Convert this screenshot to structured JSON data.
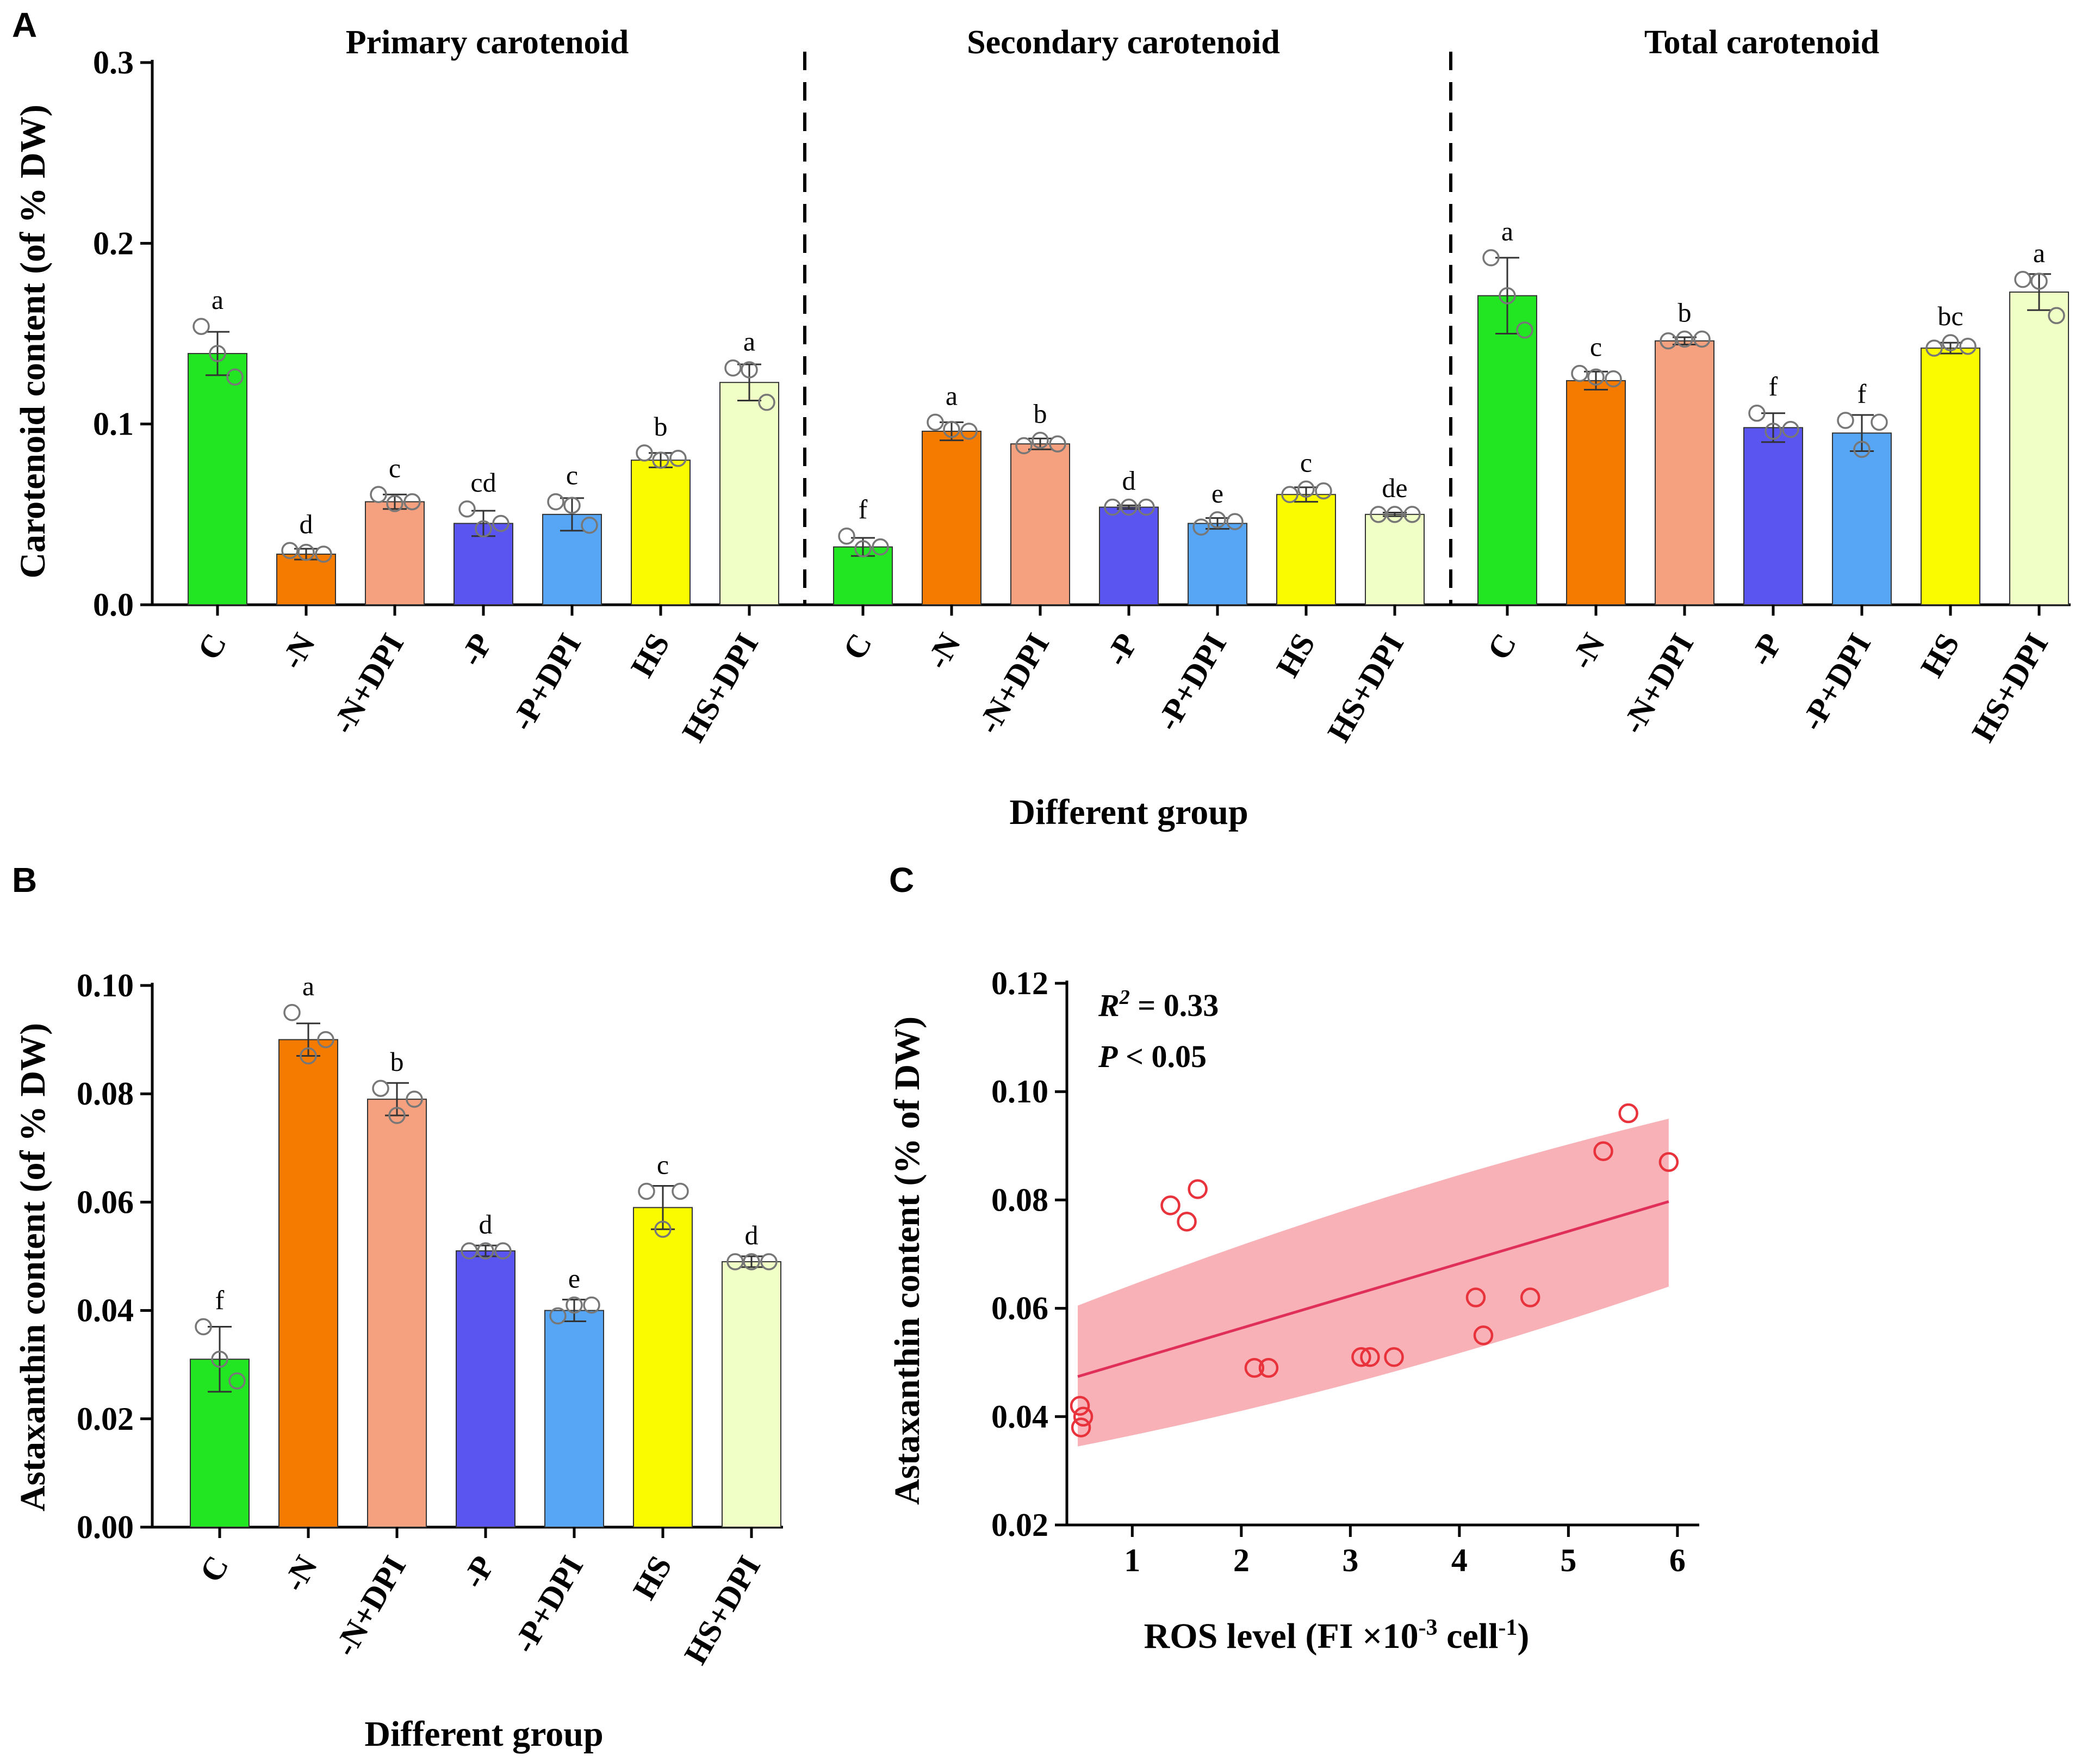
{
  "panel_letters": {
    "a": "A",
    "b": "B",
    "c": "C"
  },
  "chart_data": [
    {
      "id": "A",
      "type": "bar",
      "ylabel": "Carotenoid content (of % DW)",
      "xlabel": "Different group",
      "ylim": [
        0,
        0.3
      ],
      "yticks": [
        "0.0",
        "0.1",
        "0.2",
        "0.3"
      ],
      "categories": [
        "C",
        "-N",
        "-N+DPI",
        "-P",
        "-P+DPI",
        "HS",
        "HS+DPI"
      ],
      "colors": [
        "#22e622",
        "#f57b00",
        "#f5a07e",
        "#5a54f0",
        "#56a6f5",
        "#fbfb00",
        "#efffc6"
      ],
      "sections": [
        {
          "title": "Primary carotenoid",
          "values": [
            0.139,
            0.028,
            0.057,
            0.045,
            0.05,
            0.08,
            0.123
          ],
          "errors": [
            0.012,
            0.003,
            0.004,
            0.007,
            0.009,
            0.004,
            0.01
          ],
          "letters": [
            "a",
            "d",
            "c",
            "cd",
            "c",
            "b",
            "a"
          ],
          "points": [
            [
              0.154,
              0.139,
              0.126
            ],
            [
              0.03,
              0.029,
              0.028
            ],
            [
              0.061,
              0.056,
              0.057
            ],
            [
              0.053,
              0.042,
              0.045
            ],
            [
              0.057,
              0.055,
              0.044
            ],
            [
              0.084,
              0.08,
              0.081
            ],
            [
              0.131,
              0.13,
              0.112
            ]
          ]
        },
        {
          "title": "Secondary carotenoid",
          "values": [
            0.032,
            0.096,
            0.089,
            0.054,
            0.045,
            0.061,
            0.05
          ],
          "errors": [
            0.005,
            0.005,
            0.003,
            0.001,
            0.003,
            0.004,
            0.001
          ],
          "letters": [
            "f",
            "a",
            "b",
            "d",
            "e",
            "c",
            "de"
          ],
          "points": [
            [
              0.038,
              0.031,
              0.032
            ],
            [
              0.101,
              0.097,
              0.096
            ],
            [
              0.088,
              0.091,
              0.089
            ],
            [
              0.054,
              0.054,
              0.054
            ],
            [
              0.043,
              0.047,
              0.046
            ],
            [
              0.061,
              0.064,
              0.063
            ],
            [
              0.05,
              0.05,
              0.05
            ]
          ]
        },
        {
          "title": "Total carotenoid",
          "values": [
            0.171,
            0.124,
            0.146,
            0.098,
            0.095,
            0.142,
            0.173
          ],
          "errors": [
            0.021,
            0.005,
            0.002,
            0.008,
            0.01,
            0.003,
            0.01
          ],
          "letters": [
            "a",
            "c",
            "b",
            "f",
            "f",
            "bc",
            "a"
          ],
          "points": [
            [
              0.192,
              0.171,
              0.152
            ],
            [
              0.128,
              0.126,
              0.125
            ],
            [
              0.146,
              0.147,
              0.147
            ],
            [
              0.106,
              0.096,
              0.097
            ],
            [
              0.102,
              0.086,
              0.101
            ],
            [
              0.142,
              0.145,
              0.143
            ],
            [
              0.18,
              0.179,
              0.16
            ]
          ]
        }
      ]
    },
    {
      "id": "B",
      "type": "bar",
      "ylabel": "Astaxanthin content (of % DW)",
      "xlabel": "Different group",
      "ylim": [
        0,
        0.1
      ],
      "yticks": [
        "0.00",
        "0.02",
        "0.04",
        "0.06",
        "0.08",
        "0.10"
      ],
      "categories": [
        "C",
        "-N",
        "-N+DPI",
        "-P",
        "-P+DPI",
        "HS",
        "HS+DPI"
      ],
      "colors": [
        "#22e622",
        "#f57b00",
        "#f5a07e",
        "#5a54f0",
        "#56a6f5",
        "#fbfb00",
        "#efffc6"
      ],
      "values": [
        0.031,
        0.09,
        0.079,
        0.051,
        0.04,
        0.059,
        0.049
      ],
      "errors": [
        0.006,
        0.003,
        0.003,
        0.001,
        0.002,
        0.004,
        0.001
      ],
      "letters": [
        "f",
        "a",
        "b",
        "d",
        "e",
        "c",
        "d"
      ],
      "points": [
        [
          0.037,
          0.031,
          0.027
        ],
        [
          0.095,
          0.087,
          0.09
        ],
        [
          0.081,
          0.076,
          0.079
        ],
        [
          0.051,
          0.051,
          0.051
        ],
        [
          0.039,
          0.041,
          0.041
        ],
        [
          0.062,
          0.055,
          0.062
        ],
        [
          0.049,
          0.049,
          0.049
        ]
      ]
    },
    {
      "id": "C",
      "type": "scatter",
      "xlabel_main": "ROS level (FI ×10",
      "xlabel_sup1": "-3",
      "xlabel_mid": " cell",
      "xlabel_sup2": "-1",
      "xlabel_end": ")",
      "ylabel": "Astaxanthin content (% of DW)",
      "xlim": [
        0.4,
        6.2
      ],
      "ylim": [
        0.02,
        0.12
      ],
      "xticks": [
        "1",
        "2",
        "3",
        "4",
        "5",
        "6"
      ],
      "yticks": [
        "0.02",
        "0.04",
        "0.06",
        "0.08",
        "0.10",
        "0.12"
      ],
      "r2_symbol": "R",
      "r2_sup": "2",
      "r2_text": " = 0.33",
      "p_symbol": "P",
      "p_text": " < 0.05",
      "points": [
        [
          0.52,
          0.042
        ],
        [
          0.55,
          0.04
        ],
        [
          0.53,
          0.038
        ],
        [
          1.35,
          0.079
        ],
        [
          1.5,
          0.076
        ],
        [
          1.6,
          0.082
        ],
        [
          2.12,
          0.049
        ],
        [
          2.25,
          0.049
        ],
        [
          3.1,
          0.051
        ],
        [
          3.18,
          0.051
        ],
        [
          3.4,
          0.051
        ],
        [
          4.15,
          0.062
        ],
        [
          4.22,
          0.055
        ],
        [
          4.65,
          0.062
        ],
        [
          5.32,
          0.089
        ],
        [
          5.55,
          0.096
        ],
        [
          5.92,
          0.087
        ]
      ],
      "fit_line": {
        "x": [
          0.5,
          5.92
        ],
        "y": [
          0.0474,
          0.0797
        ]
      },
      "confidence_band": {
        "x": [
          0.5,
          5.92
        ],
        "upper": [
          0.0605,
          0.095
        ],
        "lower": [
          0.0345,
          0.064
        ]
      },
      "point_color": "#e8323c",
      "line_color": "#e0305a",
      "band_color": "#f7a4aa"
    }
  ]
}
